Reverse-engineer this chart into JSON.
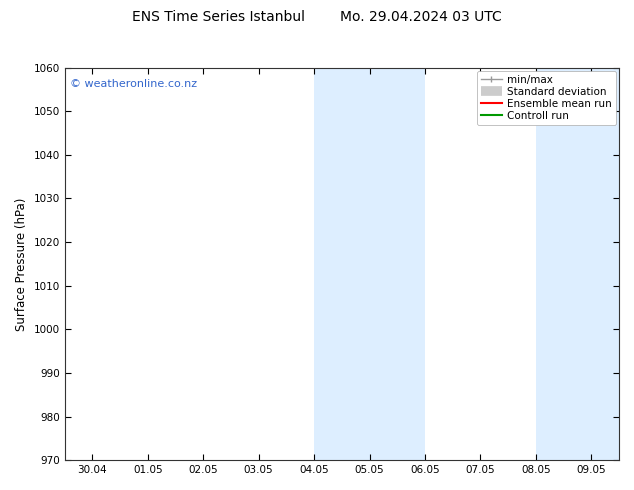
{
  "title": "ENS Time Series Istanbul        Mo. 29.04.2024 03 UTC",
  "ylabel": "Surface Pressure (hPa)",
  "ylim": [
    970,
    1060
  ],
  "yticks": [
    970,
    980,
    990,
    1000,
    1010,
    1020,
    1030,
    1040,
    1050,
    1060
  ],
  "xtick_labels": [
    "30.04",
    "01.05",
    "02.05",
    "03.05",
    "04.05",
    "05.05",
    "06.05",
    "07.05",
    "08.05",
    "09.05"
  ],
  "xtick_positions": [
    0,
    1,
    2,
    3,
    4,
    5,
    6,
    7,
    8,
    9
  ],
  "xlim_start": -0.5,
  "xlim_end": 9.5,
  "shaded_bands": [
    {
      "xmin": 4.0,
      "xmax": 5.0
    },
    {
      "xmin": 5.0,
      "xmax": 6.0
    },
    {
      "xmin": 8.0,
      "xmax": 9.0
    },
    {
      "xmin": 9.0,
      "xmax": 9.5
    }
  ],
  "shade_color": "#ddeeff",
  "bg_color": "#ffffff",
  "plot_bg_color": "#ffffff",
  "watermark": "© weatheronline.co.nz",
  "watermark_color": "#3366cc",
  "legend_labels": [
    "min/max",
    "Standard deviation",
    "Ensemble mean run",
    "Controll run"
  ],
  "legend_colors": [
    "#999999",
    "#cccccc",
    "#ff0000",
    "#009900"
  ],
  "title_fontsize": 10,
  "tick_fontsize": 7.5,
  "ylabel_fontsize": 8.5,
  "watermark_fontsize": 8,
  "legend_fontsize": 7.5
}
